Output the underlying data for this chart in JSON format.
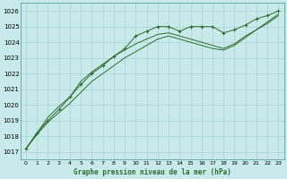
{
  "title": "Graphe pression niveau de la mer (hPa)",
  "bg_color": "#c8eaea",
  "grid_color": "#aad4d4",
  "line_color": "#2d6e2d",
  "xlim": [
    -0.5,
    23.5
  ],
  "ylim": [
    1016.5,
    1026.5
  ],
  "yticks": [
    1017,
    1018,
    1019,
    1020,
    1021,
    1022,
    1023,
    1024,
    1025,
    1026
  ],
  "xticks": [
    0,
    1,
    2,
    3,
    4,
    5,
    6,
    7,
    8,
    9,
    10,
    11,
    12,
    13,
    14,
    15,
    16,
    17,
    18,
    19,
    20,
    21,
    22,
    23
  ],
  "x": [
    0,
    1,
    2,
    3,
    4,
    5,
    6,
    7,
    8,
    9,
    10,
    11,
    12,
    13,
    14,
    15,
    16,
    17,
    18,
    19,
    20,
    21,
    22,
    23
  ],
  "line_marked": [
    1017.2,
    1018.2,
    1019.0,
    1019.7,
    1020.5,
    1021.3,
    1022.0,
    1022.5,
    1023.1,
    1023.6,
    1024.4,
    1024.7,
    1025.0,
    1025.0,
    1024.7,
    1025.0,
    1025.0,
    1025.0,
    1024.6,
    1024.8,
    1025.1,
    1025.5,
    1025.7,
    1026.0
  ],
  "line_mid": [
    1017.2,
    1018.2,
    1019.2,
    1019.9,
    1020.5,
    1021.5,
    1022.1,
    1022.6,
    1023.1,
    1023.5,
    1023.9,
    1024.2,
    1024.5,
    1024.6,
    1024.4,
    1024.2,
    1024.0,
    1023.8,
    1023.6,
    1023.9,
    1024.4,
    1024.8,
    1025.3,
    1025.8
  ],
  "line_low": [
    1017.2,
    1018.1,
    1018.9,
    1019.5,
    1020.1,
    1020.8,
    1021.5,
    1022.0,
    1022.5,
    1023.0,
    1023.4,
    1023.8,
    1024.2,
    1024.4,
    1024.2,
    1024.0,
    1023.8,
    1023.6,
    1023.5,
    1023.8,
    1024.3,
    1024.8,
    1025.2,
    1025.7
  ]
}
